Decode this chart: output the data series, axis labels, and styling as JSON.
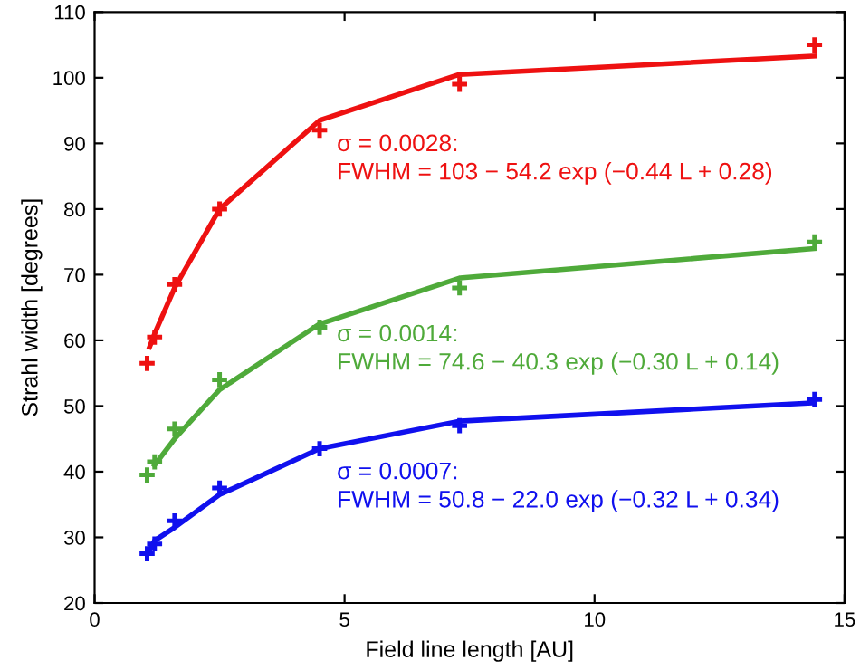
{
  "chart_data": {
    "type": "scatter",
    "xlabel": "Field line length [AU]",
    "ylabel": "Strahl width [degrees]",
    "xlim": [
      0,
      15
    ],
    "ylim": [
      20,
      110
    ],
    "xticks": [
      0,
      5,
      10,
      15
    ],
    "yticks": [
      20,
      30,
      40,
      50,
      60,
      70,
      80,
      90,
      100,
      110
    ],
    "grid": false,
    "legend": false,
    "series": [
      {
        "color": "#ee1111",
        "marker": "cross",
        "x": [
          1.05,
          1.2,
          1.6,
          2.5,
          4.5,
          7.3,
          14.4
        ],
        "values": [
          56.5,
          60.5,
          68.5,
          80,
          92,
          99,
          105
        ]
      },
      {
        "color": "#4faa3a",
        "marker": "cross",
        "x": [
          1.05,
          1.2,
          1.6,
          2.5,
          4.5,
          7.3,
          14.4
        ],
        "values": [
          39.5,
          41.5,
          46.5,
          54,
          62,
          68,
          75
        ]
      },
      {
        "color": "#1010ee",
        "marker": "cross",
        "x": [
          1.05,
          1.2,
          1.6,
          2.5,
          4.5,
          7.3,
          14.4
        ],
        "values": [
          27.5,
          29,
          32.5,
          37.5,
          43.5,
          47,
          51
        ]
      },
      {
        "type": "line",
        "color": "#ee1111",
        "x": [
          1.1,
          1.2,
          1.6,
          2.5,
          4.5,
          7.3,
          14.4
        ],
        "values": [
          59,
          61,
          68,
          80,
          93.5,
          100.5,
          103.3
        ]
      },
      {
        "type": "line",
        "color": "#4faa3a",
        "x": [
          1.2,
          1.6,
          2.5,
          4.5,
          7.3,
          14.4
        ],
        "values": [
          41,
          45,
          52.5,
          62.5,
          69.5,
          74
        ]
      },
      {
        "type": "line",
        "color": "#1010ee",
        "x": [
          1.1,
          1.2,
          1.6,
          2.5,
          4.5,
          7.3,
          14.4
        ],
        "values": [
          28,
          29.5,
          31.5,
          36.5,
          43.5,
          47.7,
          50.5
        ]
      }
    ],
    "annotations": [
      "σ = 0.0028:\nFWHM = 103 − 54.2 exp (−0.44 L + 0.28)",
      "σ = 0.0014:\nFWHM = 74.6 − 40.3 exp (−0.30 L + 0.14)",
      "σ = 0.0007:\nFWHM = 50.8 − 22.0 exp (−0.32 L + 0.34)"
    ]
  }
}
